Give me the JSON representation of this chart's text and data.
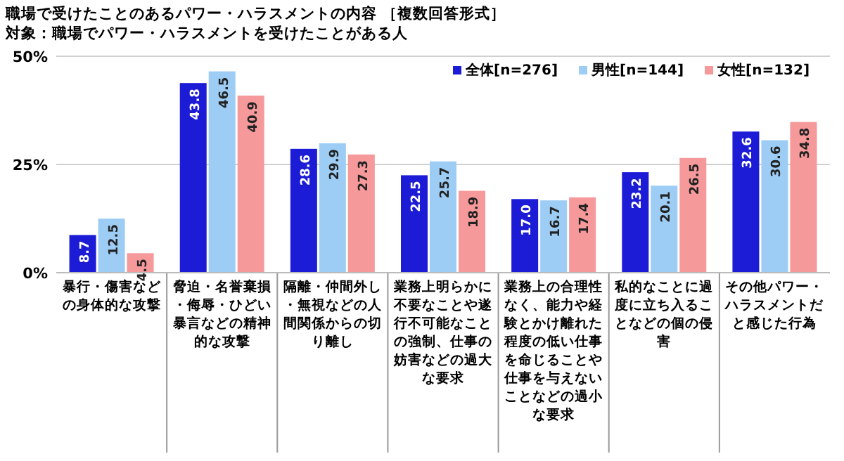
{
  "chart_data": {
    "type": "bar",
    "title": "職場で受けたことのあるパワー・ハラスメントの内容 ［複数回答形式］",
    "subtitle": "対象：職場でパワー・ハラスメントを受けたことがある人",
    "categories": [
      "暴行・傷害などの身体的な攻撃",
      "脅迫・名誉棄損・侮辱・ひどい暴言などの精神的な攻撃",
      "隔離・仲間外し・無視などの人間関係からの切り離し",
      "業務上明らかに不要なことや遂行不可能なことの強制、仕事の妨害などの過大な要求",
      "業務上の合理性なく、能力や経験とかけ離れた程度の低い仕事を命じることや仕事を与えないことなどの過小な要求",
      "私的なことに過度に立ち入ることなどの個の侵害",
      "その他パワー・ハラスメントだと感じた行為"
    ],
    "series": [
      {
        "name": "全体[n=276]",
        "color": "#1c1cd6",
        "values": [
          8.7,
          43.8,
          28.6,
          22.5,
          17.0,
          23.2,
          32.6
        ],
        "value_labels": [
          "8.7",
          "43.8",
          "28.6",
          "22.5",
          "17.0",
          "23.2",
          "32.6"
        ]
      },
      {
        "name": "男性[n=144]",
        "color": "#9dcdf5",
        "values": [
          12.5,
          46.5,
          29.9,
          25.7,
          16.7,
          20.1,
          30.6
        ],
        "value_labels": [
          "12.5",
          "46.5",
          "29.9",
          "25.7",
          "16.7",
          "20.1",
          "30.6"
        ]
      },
      {
        "name": "女性[n=132]",
        "color": "#f5999b",
        "values": [
          4.5,
          40.9,
          27.3,
          18.9,
          17.4,
          26.5,
          34.8
        ],
        "value_labels": [
          "4.5",
          "40.9",
          "27.3",
          "18.9",
          "17.4",
          "26.5",
          "34.8"
        ]
      }
    ],
    "ylim": [
      0,
      50
    ],
    "yticks": [
      {
        "value": 0,
        "label": "0%"
      },
      {
        "value": 25,
        "label": "25%"
      },
      {
        "value": 50,
        "label": "50%"
      }
    ],
    "grid": "y",
    "legend": "top right"
  }
}
